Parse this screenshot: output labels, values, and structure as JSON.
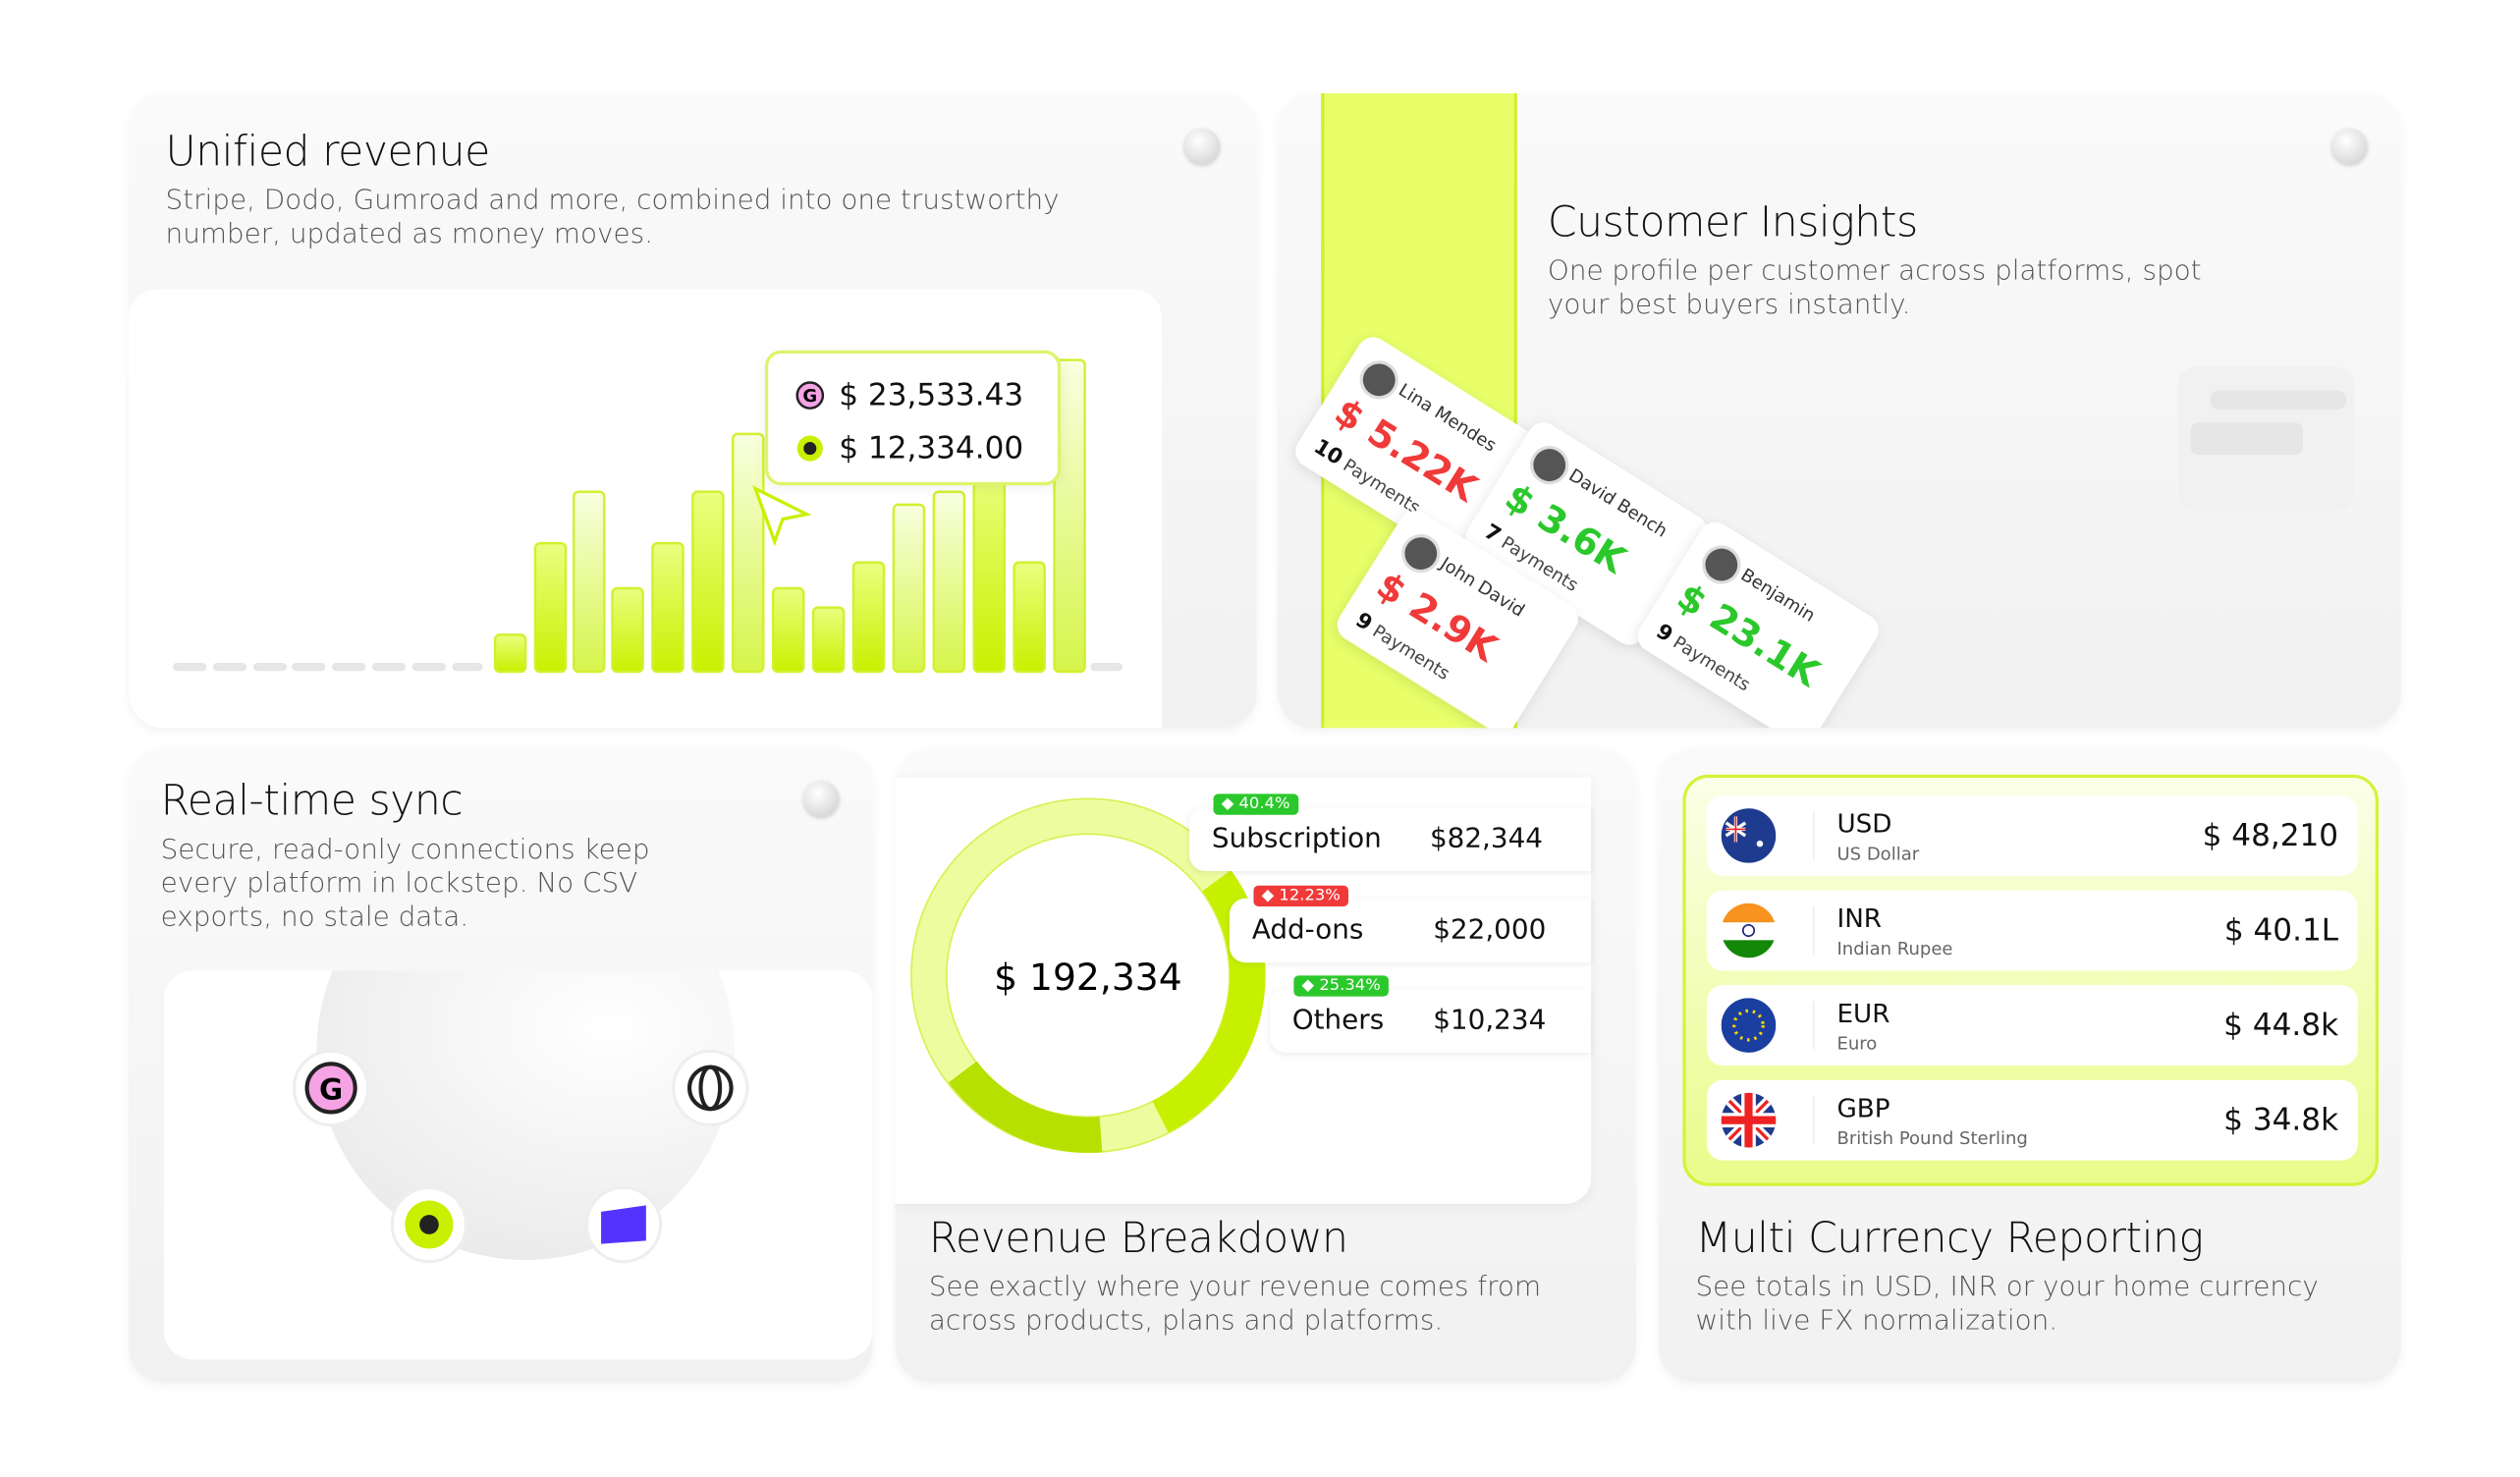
{
  "unified": {
    "title": "Unified revenue",
    "description": "Stripe, Dodo, Gumroad and more, combined into one trustworthy number, updated as money moves.",
    "tooltip": [
      "$ 23,533.43",
      "$ 12,334.00"
    ]
  },
  "insights": {
    "title": "Customer Insights",
    "description": "One profile per customer across platforms, spot your best buyers instantly.",
    "customers": [
      {
        "name": "Lina Mendes",
        "amount": "$ 5.22K",
        "payments": 10,
        "payments_text": "Payments"
      },
      {
        "name": "David Bench",
        "amount": "$ 3.6K",
        "payments": 7,
        "payments_text": "Payments"
      },
      {
        "name": "Benjamin",
        "amount": "$ 23.1K",
        "payments": 9,
        "payments_text": "Payments"
      },
      {
        "name": "John David",
        "amount": "$ 2.9K",
        "payments": 9,
        "payments_text": "Payments"
      }
    ]
  },
  "sync": {
    "title": "Real-time sync",
    "description": "Secure, read-only connections keep every platform in lockstep. No CSV exports, no stale data."
  },
  "breakdown": {
    "title": "Revenue Breakdown",
    "description": "See exactly where your revenue comes from across products, plans and platforms.",
    "total": "$ 192,334",
    "rows": [
      {
        "name": "Subscription",
        "amount": "$82,344",
        "change": "40.4%"
      },
      {
        "name": "Add-ons",
        "amount": "$22,000",
        "change": "12.23%"
      },
      {
        "name": "Others",
        "amount": "$10,234",
        "change": "25.34%"
      }
    ]
  },
  "currency": {
    "title": "Multi Currency Reporting",
    "description": "See totals in USD, INR or your home currency with live FX normalization.",
    "rows": [
      {
        "code": "USD",
        "name": "US Dollar",
        "amount": "$ 48,210"
      },
      {
        "code": "INR",
        "name": "Indian Rupee",
        "amount": "$ 40.1L"
      },
      {
        "code": "EUR",
        "name": "Euro",
        "amount": "$ 44.8k"
      },
      {
        "code": "GBP",
        "name": "British Pound Sterling",
        "amount": "$ 34.8k"
      }
    ]
  }
}
